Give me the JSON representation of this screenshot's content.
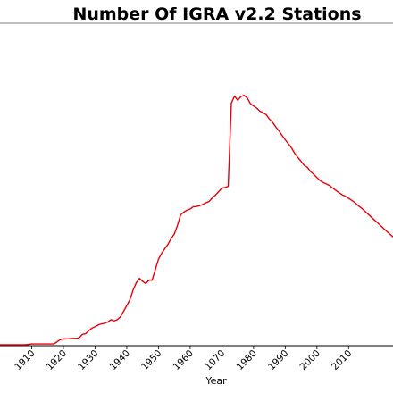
{
  "chart_data": {
    "type": "line",
    "title": "Number Of IGRA v2.2 Stations",
    "xlabel": "Year",
    "ylabel": "",
    "xlim": [
      1900,
      2024
    ],
    "ylim": [
      0,
      1000
    ],
    "x_ticks": [
      "1910",
      "1920",
      "1930",
      "1940",
      "1950",
      "1960",
      "1970",
      "1980",
      "1990",
      "2000",
      "2010"
    ],
    "y_tick_labels_visible": false,
    "grid": false,
    "line_color": "#e8000b",
    "series": [
      {
        "x": [
          1900,
          1902,
          1904,
          1906,
          1908,
          1910,
          1912,
          1914,
          1916,
          1917,
          1918,
          1919,
          1920,
          1921,
          1922,
          1923,
          1924,
          1925,
          1926,
          1927,
          1928,
          1929,
          1930,
          1931,
          1932,
          1933,
          1934,
          1935,
          1936,
          1937,
          1938,
          1939,
          1940,
          1941,
          1942,
          1943,
          1944,
          1945,
          1946,
          1947,
          1948,
          1949,
          1950,
          1951,
          1952,
          1953,
          1954,
          1955,
          1956,
          1957,
          1958,
          1959,
          1960,
          1961,
          1962,
          1963,
          1964,
          1965,
          1966,
          1967,
          1968,
          1969,
          1970,
          1971,
          1972,
          1973,
          1974,
          1975,
          1976,
          1977,
          1978,
          1979,
          1980,
          1981,
          1982,
          1983,
          1984,
          1985,
          1986,
          1987,
          1988,
          1989,
          1990,
          1991,
          1992,
          1993,
          1994,
          1995,
          1996,
          1997,
          1998,
          1999,
          2000,
          2001,
          2002,
          2003,
          2004,
          2005,
          2006,
          2007,
          2008,
          2009,
          2010,
          2011,
          2012,
          2013,
          2014,
          2015,
          2016,
          2017,
          2018,
          2019,
          2020,
          2021,
          2022,
          2023,
          2024
        ],
        "y": [
          0,
          0,
          0,
          0,
          0,
          3,
          3,
          3,
          3,
          3,
          10,
          18,
          20,
          20,
          21,
          22,
          22,
          24,
          36,
          38,
          48,
          57,
          62,
          68,
          72,
          74,
          78,
          86,
          82,
          86,
          96,
          115,
          135,
          155,
          188,
          213,
          228,
          218,
          210,
          222,
          222,
          258,
          294,
          314,
          330,
          345,
          365,
          380,
          410,
          446,
          456,
          462,
          466,
          474,
          475,
          478,
          482,
          488,
          492,
          505,
          514,
          526,
          538,
          540,
          544,
          830,
          854,
          840,
          852,
          857,
          848,
          828,
          820,
          813,
          802,
          797,
          790,
          775,
          764,
          748,
          735,
          719,
          704,
          690,
          676,
          657,
          643,
          630,
          616,
          609,
          595,
          585,
          574,
          564,
          557,
          552,
          547,
          538,
          530,
          522,
          515,
          510,
          503,
          496,
          488,
          478,
          470,
          460,
          450,
          440,
          430,
          420,
          410,
          400,
          390,
          380,
          370
        ]
      }
    ]
  }
}
